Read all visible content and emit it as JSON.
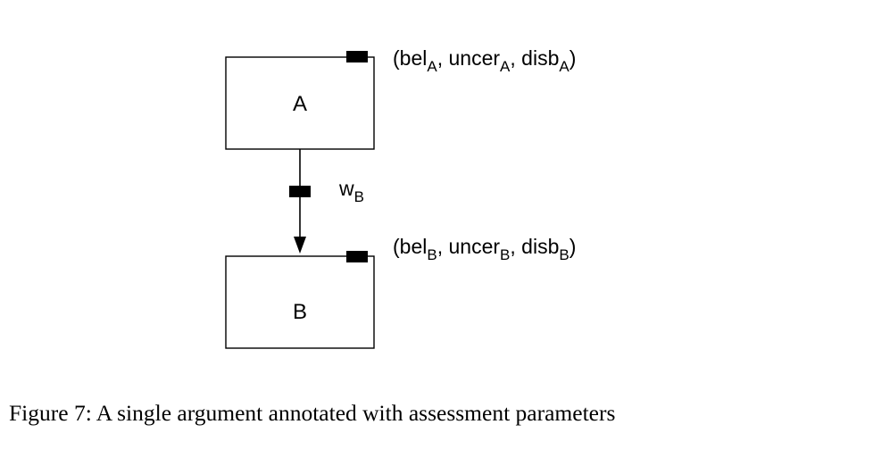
{
  "diagram": {
    "nodes": [
      {
        "id": "A",
        "label": "A",
        "params": {
          "open": "(",
          "bel": "bel",
          "bel_sub": "A",
          "sep1": ", ",
          "uncer": "uncer",
          "uncer_sub": "A",
          "sep2": ", ",
          "disb": "disb",
          "disb_sub": "A",
          "close": ")"
        }
      },
      {
        "id": "B",
        "label": "B",
        "params": {
          "open": "(",
          "bel": "bel",
          "bel_sub": "B",
          "sep1": ", ",
          "uncer": "uncer",
          "uncer_sub": "B",
          "sep2": ", ",
          "disb": "disb",
          "disb_sub": "B",
          "close": ")"
        }
      }
    ],
    "edge": {
      "from": "A",
      "to": "B",
      "weight": "w",
      "weight_sub": "B"
    }
  },
  "caption": "Figure 7: A single argument annotated with assessment parameters"
}
